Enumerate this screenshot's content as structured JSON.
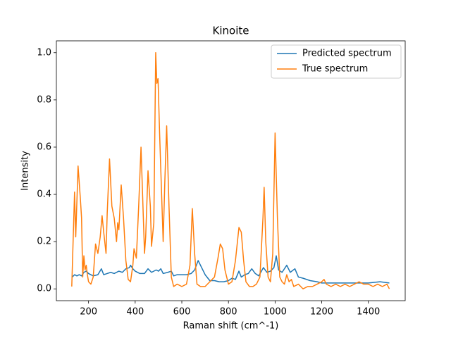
{
  "chart_data": {
    "type": "line",
    "title": "Kinoite",
    "x_label": "Raman shift (cm^-1)",
    "y_label": "Intensity",
    "xlim": [
      62,
      1558
    ],
    "ylim": [
      -0.05,
      1.05
    ],
    "xticks": [
      200,
      400,
      600,
      800,
      1000,
      1200,
      1400
    ],
    "yticks": [
      {
        "value": 0,
        "label": "0.0"
      },
      0.2,
      0.4,
      0.6,
      0.8,
      {
        "value": 1,
        "label": "1.0"
      }
    ],
    "legend": "upper right",
    "series": [
      {
        "name": "Predicted spectrum",
        "color": "#1f77b4",
        "x": [
          130,
          140,
          150,
          160,
          170,
          180,
          190,
          200,
          220,
          240,
          255,
          265,
          280,
          295,
          310,
          330,
          345,
          360,
          375,
          380,
          390,
          400,
          420,
          440,
          455,
          470,
          490,
          500,
          510,
          520,
          540,
          555,
          565,
          580,
          600,
          620,
          640,
          655,
          670,
          685,
          700,
          720,
          740,
          760,
          780,
          800,
          815,
          830,
          845,
          855,
          870,
          885,
          900,
          915,
          930,
          950,
          965,
          980,
          995,
          1005,
          1015,
          1030,
          1050,
          1065,
          1085,
          1100,
          1120,
          1150,
          1180,
          1200,
          1250,
          1300,
          1350,
          1400,
          1450,
          1490
        ],
        "values": [
          0.05,
          0.06,
          0.055,
          0.06,
          0.055,
          0.07,
          0.075,
          0.065,
          0.055,
          0.06,
          0.085,
          0.06,
          0.065,
          0.07,
          0.065,
          0.075,
          0.07,
          0.085,
          0.09,
          0.1,
          0.085,
          0.075,
          0.065,
          0.065,
          0.085,
          0.07,
          0.08,
          0.075,
          0.085,
          0.065,
          0.07,
          0.075,
          0.055,
          0.06,
          0.06,
          0.06,
          0.065,
          0.08,
          0.12,
          0.09,
          0.06,
          0.035,
          0.035,
          0.03,
          0.03,
          0.035,
          0.045,
          0.04,
          0.075,
          0.05,
          0.06,
          0.065,
          0.085,
          0.065,
          0.055,
          0.09,
          0.07,
          0.075,
          0.09,
          0.14,
          0.08,
          0.07,
          0.1,
          0.07,
          0.085,
          0.05,
          0.045,
          0.035,
          0.03,
          0.025,
          0.025,
          0.025,
          0.025,
          0.025,
          0.03,
          0.025
        ]
      },
      {
        "name": "True spectrum",
        "color": "#ff7f0e",
        "x": [
          128,
          140,
          145,
          155,
          165,
          170,
          175,
          180,
          185,
          190,
          195,
          200,
          210,
          220,
          230,
          240,
          250,
          258,
          265,
          275,
          280,
          290,
          300,
          310,
          320,
          325,
          330,
          340,
          350,
          360,
          370,
          380,
          390,
          395,
          405,
          415,
          425,
          435,
          440,
          445,
          455,
          465,
          470,
          480,
          488,
          493,
          498,
          505,
          515,
          520,
          527,
          535,
          545,
          555,
          565,
          580,
          600,
          620,
          635,
          645,
          655,
          665,
          680,
          700,
          720,
          740,
          755,
          765,
          775,
          785,
          800,
          815,
          830,
          845,
          855,
          865,
          875,
          890,
          905,
          920,
          935,
          948,
          953,
          960,
          970,
          980,
          990,
          1000,
          1010,
          1020,
          1030,
          1040,
          1050,
          1060,
          1070,
          1080,
          1100,
          1120,
          1140,
          1160,
          1180,
          1200,
          1210,
          1220,
          1240,
          1260,
          1280,
          1300,
          1320,
          1340,
          1360,
          1380,
          1400,
          1420,
          1440,
          1460,
          1480,
          1490
        ],
        "values": [
          0.01,
          0.41,
          0.22,
          0.52,
          0.38,
          0.3,
          0.05,
          0.14,
          0.08,
          0.1,
          0.06,
          0.03,
          0.02,
          0.05,
          0.19,
          0.15,
          0.22,
          0.31,
          0.24,
          0.15,
          0.32,
          0.55,
          0.35,
          0.3,
          0.2,
          0.28,
          0.25,
          0.44,
          0.3,
          0.12,
          0.04,
          0.03,
          0.1,
          0.17,
          0.13,
          0.35,
          0.6,
          0.3,
          0.15,
          0.22,
          0.5,
          0.35,
          0.18,
          0.28,
          1.0,
          0.87,
          0.89,
          0.65,
          0.35,
          0.2,
          0.45,
          0.69,
          0.35,
          0.05,
          0.01,
          0.02,
          0.01,
          0.02,
          0.1,
          0.34,
          0.15,
          0.02,
          0.01,
          0.01,
          0.03,
          0.05,
          0.13,
          0.19,
          0.17,
          0.08,
          0.02,
          0.03,
          0.12,
          0.26,
          0.24,
          0.12,
          0.03,
          0.01,
          0.01,
          0.02,
          0.05,
          0.3,
          0.43,
          0.2,
          0.05,
          0.03,
          0.15,
          0.66,
          0.3,
          0.05,
          0.03,
          0.02,
          0.06,
          0.03,
          0.04,
          0.01,
          0.02,
          0.0,
          0.01,
          0.01,
          0.02,
          0.03,
          0.04,
          0.02,
          0.01,
          0.02,
          0.01,
          0.02,
          0.01,
          0.02,
          0.03,
          0.02,
          0.02,
          0.01,
          0.02,
          0.01,
          0.02,
          0.0
        ]
      }
    ]
  }
}
